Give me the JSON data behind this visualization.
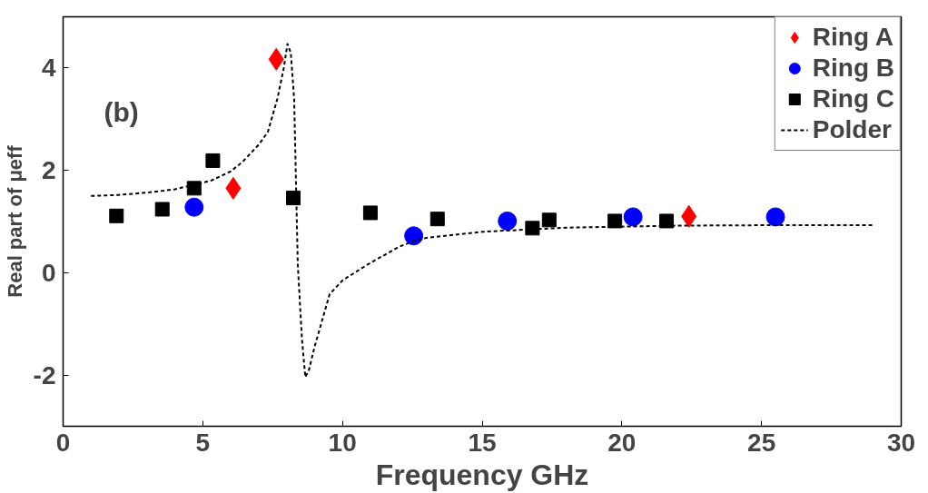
{
  "chart_data": {
    "type": "scatter",
    "xlabel": "Frequency GHz",
    "ylabel": "Real part of μeff",
    "annotations": [
      "(b)"
    ],
    "xlim": [
      0,
      30
    ],
    "ylim": [
      -3,
      5
    ],
    "xticks": [
      0,
      5,
      10,
      15,
      20,
      25,
      30
    ],
    "yticks": [
      -2,
      0,
      2,
      4
    ],
    "grid": false,
    "legend": "top right",
    "series": [
      {
        "name": "Ring A",
        "color": "#ff0000",
        "marker": "diamond",
        "x": [
          7.63,
          6.09,
          22.4
        ],
        "values": [
          4.17,
          1.65,
          1.1
        ]
      },
      {
        "name": "Ring B",
        "color": "#0000ff",
        "marker": "circle",
        "x": [
          4.69,
          12.55,
          15.9,
          20.4,
          25.5
        ],
        "values": [
          1.28,
          0.72,
          1.01,
          1.09,
          1.09
        ]
      },
      {
        "name": "Ring C",
        "color": "#000000",
        "marker": "square",
        "x": [
          1.91,
          3.55,
          4.69,
          5.36,
          8.24,
          11.0,
          13.4,
          16.8,
          17.4,
          19.75,
          21.6
        ],
        "values": [
          1.11,
          1.24,
          1.65,
          2.19,
          1.46,
          1.17,
          1.05,
          0.87,
          1.03,
          1.01,
          1.01
        ]
      },
      {
        "name": "Polder",
        "type": "line",
        "color": "#000000",
        "line_style": "dashed",
        "marker": "none",
        "x": [
          1,
          2,
          3.1,
          4,
          5.3,
          6,
          6.43,
          7,
          7.33,
          7.67,
          7.9,
          8.03,
          8.15,
          8.27,
          8.4,
          8.55,
          8.67,
          8.8,
          9.0,
          9.2,
          9.54,
          10,
          10.9,
          12,
          12.55,
          13,
          15,
          18,
          22,
          26,
          29
        ],
        "values": [
          1.5,
          1.52,
          1.57,
          1.63,
          1.8,
          1.98,
          2.17,
          2.5,
          2.75,
          3.4,
          4.0,
          4.47,
          4.3,
          3.4,
          0.16,
          -1.3,
          -2.04,
          -1.9,
          -1.45,
          -1.07,
          -0.42,
          -0.15,
          0.16,
          0.5,
          0.62,
          0.68,
          0.8,
          0.88,
          0.92,
          0.93,
          0.93
        ]
      }
    ]
  }
}
